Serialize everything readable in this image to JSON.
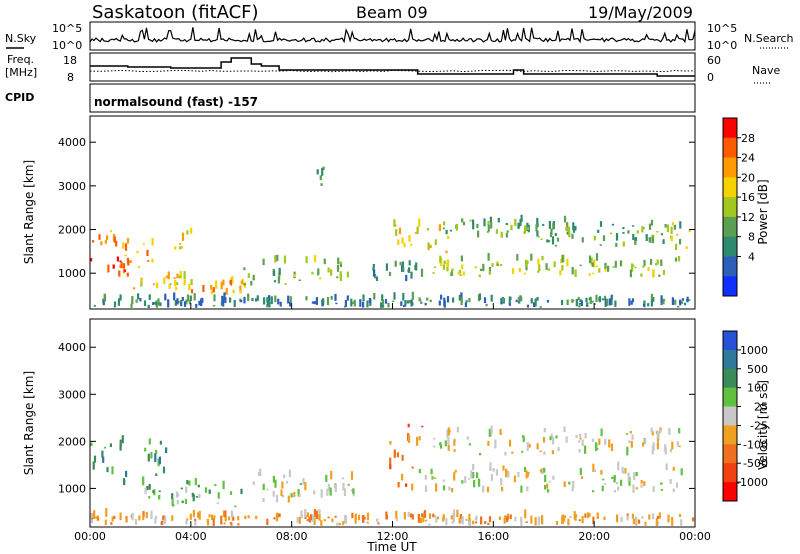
{
  "header": {
    "station": "Saskatoon (fitACF)",
    "beam": "Beam 09",
    "date": "19/May/2009"
  },
  "top_panel": {
    "left_label": "N.Sky",
    "left_ticks": [
      "10^5",
      "10^0"
    ],
    "right_ticks": [
      "10^5",
      "10^0"
    ],
    "right_label": "N.Search"
  },
  "freq_panel": {
    "left_label_1": "Freq.",
    "left_label_2": "[MHz]",
    "left_ticks": [
      "18",
      "8"
    ],
    "right_ticks": [
      "60",
      "0"
    ],
    "right_label": "Nave"
  },
  "cpid_panel": {
    "label": "CPID",
    "value": "normalsound (fast) -157"
  },
  "power_colorbar": {
    "label": "Power [dB]",
    "ticks": [
      "28",
      "24",
      "20",
      "16",
      "12",
      "8",
      "4"
    ],
    "colors": [
      "#ff0000",
      "#ff5a00",
      "#ff9a00",
      "#f5d200",
      "#a0c81e",
      "#5aa050",
      "#2f8a6e",
      "#2b5fb8",
      "#1030ff"
    ]
  },
  "velocity_colorbar": {
    "label": "Velocity [m s",
    "label_sup": "-1",
    "label_end": "]",
    "ticks": [
      "1000",
      "500",
      "100",
      "25",
      "-25",
      "-100",
      "-500",
      "-1000"
    ],
    "colors": [
      "#2850d8",
      "#2f7a9a",
      "#3a8a5a",
      "#60c040",
      "#c8c8c8",
      "#f0a020",
      "#f07020",
      "#f04010",
      "#ff0000"
    ]
  },
  "x_axis": {
    "label": "Time UT",
    "ticks": [
      "00:00",
      "04:00",
      "08:00",
      "12:00",
      "16:00",
      "20:00",
      "00:00"
    ]
  },
  "chart_data": [
    {
      "type": "heatmap",
      "title": "",
      "xlabel": "Time UT",
      "ylabel": "Slant Range [km]",
      "y_ticks": [
        "1000",
        "2000",
        "3000",
        "4000"
      ],
      "ylim": [
        180,
        4600
      ],
      "xlim": [
        0,
        24
      ],
      "colorbar": "Power [dB]",
      "regions": [
        {
          "t0": 0.0,
          "t1": 1.6,
          "r0": 900,
          "r1": 1300,
          "level": 1
        },
        {
          "t0": 0.0,
          "t1": 1.0,
          "r0": 1500,
          "r1": 2000,
          "level": 2
        },
        {
          "t0": 1.2,
          "t1": 2.6,
          "r0": 1100,
          "r1": 1700,
          "level": 2
        },
        {
          "t0": 1.5,
          "t1": 4.0,
          "r0": 600,
          "r1": 900,
          "level": 3
        },
        {
          "t0": 3.2,
          "t1": 4.0,
          "r0": 1500,
          "r1": 2000,
          "level": 3
        },
        {
          "t0": 4.0,
          "t1": 6.2,
          "r0": 500,
          "r1": 800,
          "level": 2
        },
        {
          "t0": 6.0,
          "t1": 7.8,
          "r0": 700,
          "r1": 1300,
          "level": 5
        },
        {
          "t0": 8.0,
          "t1": 10.2,
          "r0": 800,
          "r1": 1300,
          "level": 4
        },
        {
          "t0": 8.8,
          "t1": 9.4,
          "r0": 2900,
          "r1": 3500,
          "level": 6
        },
        {
          "t0": 11.0,
          "t1": 13.2,
          "r0": 800,
          "r1": 1200,
          "level": 6
        },
        {
          "t0": 12.0,
          "t1": 14.2,
          "r0": 1400,
          "r1": 2200,
          "level": 3
        },
        {
          "t0": 13.5,
          "t1": 23.0,
          "r0": 900,
          "r1": 1300,
          "level": 4
        },
        {
          "t0": 14.0,
          "t1": 19.0,
          "r0": 1800,
          "r1": 2200,
          "level": 5
        },
        {
          "t0": 17.0,
          "t1": 23.5,
          "r0": 1600,
          "r1": 2100,
          "level": 5
        },
        {
          "t0": 23.0,
          "t1": 24.0,
          "r0": 1000,
          "r1": 2300,
          "level": 4
        },
        {
          "t0": 0.0,
          "t1": 24.0,
          "r0": 200,
          "r1": 400,
          "level": 6
        }
      ]
    },
    {
      "type": "heatmap",
      "title": "",
      "xlabel": "Time UT",
      "ylabel": "Slant Range [km]",
      "y_ticks": [
        "1000",
        "2000",
        "3000",
        "4000"
      ],
      "ylim": [
        180,
        4600
      ],
      "xlim": [
        0,
        24
      ],
      "colorbar": "Velocity [m s-1]",
      "regions": [
        {
          "t0": 0.0,
          "t1": 3.0,
          "r0": 900,
          "r1": 2000,
          "level": 2
        },
        {
          "t0": 2.0,
          "t1": 6.0,
          "r0": 600,
          "r1": 1100,
          "level": 3
        },
        {
          "t0": 6.0,
          "t1": 8.0,
          "r0": 700,
          "r1": 1300,
          "level": 4
        },
        {
          "t0": 8.0,
          "t1": 10.5,
          "r0": 800,
          "r1": 1200,
          "level": 4
        },
        {
          "t0": 11.5,
          "t1": 12.8,
          "r0": 900,
          "r1": 2000,
          "level": 6
        },
        {
          "t0": 12.5,
          "t1": 13.2,
          "r0": 1900,
          "r1": 2300,
          "level": 6
        },
        {
          "t0": 13.0,
          "t1": 23.5,
          "r0": 900,
          "r1": 1400,
          "level": 4
        },
        {
          "t0": 13.5,
          "t1": 23.5,
          "r0": 1700,
          "r1": 2200,
          "level": 4
        },
        {
          "t0": 0.0,
          "t1": 24.0,
          "r0": 200,
          "r1": 400,
          "level": 5
        }
      ]
    }
  ]
}
